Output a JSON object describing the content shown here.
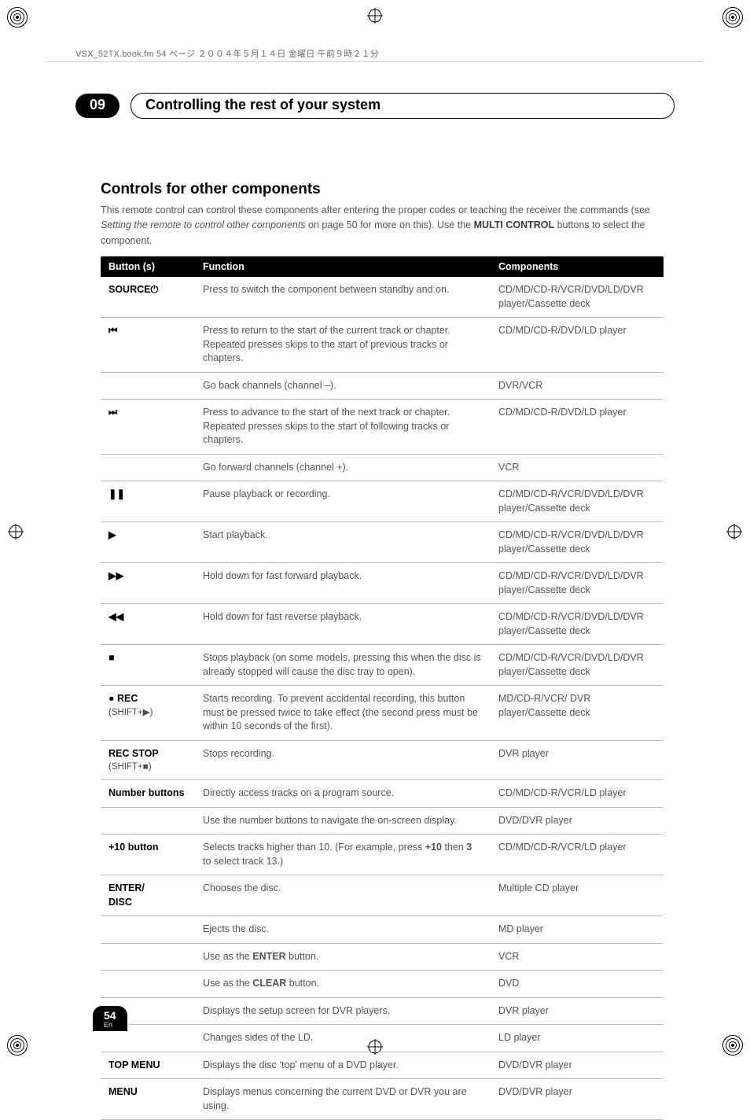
{
  "header": {
    "doc_line": "VSX_52TX.book.fm 54 ページ ２００４年５月１４日 金曜日 午前９時２１分"
  },
  "chapter": {
    "number": "09",
    "title": "Controlling the rest of your system"
  },
  "section": {
    "title": "Controls for other components",
    "intro_pre": "This remote control can control these components after entering the proper codes or teaching the receiver the commands (see ",
    "intro_em": "Setting the remote to control other components",
    "intro_mid": " on page 50 for more on this). Use the ",
    "intro_strong1": "MULTI CONTROL",
    "intro_post": " buttons to select the component."
  },
  "table": {
    "headers": {
      "c1": "Button (s)",
      "c2": "Function",
      "c3": "Components"
    },
    "rows": [
      {
        "btn": "SOURCE⏻",
        "fn": "Press to switch the component between standby and on.",
        "comp": "CD/MD/CD-R/VCR/DVD/LD/DVR player/Cassette deck"
      },
      {
        "btn": "⏮",
        "fn": "Press to return to the start of the current track or chapter.\nRepeated presses skips to the start of previous tracks or chapters.",
        "comp": "CD/MD/CD-R/DVD/LD player"
      },
      {
        "btn": "",
        "fn": "Go back channels (channel –).",
        "comp": "DVR/VCR"
      },
      {
        "btn": "⏭",
        "fn": "Press to advance to the start of the next track or chapter.\nRepeated presses skips to the start of following tracks or chapters.",
        "comp": "CD/MD/CD-R/DVD/LD player"
      },
      {
        "btn": "",
        "fn": "Go forward channels (channel +).",
        "comp": "VCR"
      },
      {
        "btn": "❚❚",
        "fn": "Pause playback or recording.",
        "comp": "CD/MD/CD-R/VCR/DVD/LD/DVR player/Cassette deck"
      },
      {
        "btn": "▶",
        "fn": "Start playback.",
        "comp": "CD/MD/CD-R/VCR/DVD/LD/DVR player/Cassette deck"
      },
      {
        "btn": "▶▶",
        "fn": "Hold down for fast forward playback.",
        "comp": "CD/MD/CD-R/VCR/DVD/LD/DVR player/Cassette deck"
      },
      {
        "btn": "◀◀",
        "fn": "Hold down for fast reverse playback.",
        "comp": "CD/MD/CD-R/VCR/DVD/LD/DVR player/Cassette deck"
      },
      {
        "btn": "■",
        "fn": "Stops playback (on some models, pressing this when the disc is already stopped will cause the disc tray to open).",
        "comp": "CD/MD/CD-R/VCR/DVD/LD/DVR player/Cassette deck"
      },
      {
        "btn": "● REC",
        "btn_sub": "(SHIFT+▶)",
        "fn": "Starts recording. To prevent accidental recording, this button must be pressed twice to take effect (the second press must be within 10 seconds of the first).",
        "comp": "MD/CD-R/VCR/ DVR player/Cassette deck"
      },
      {
        "btn": "REC STOP",
        "btn_sub": "(SHIFT+■)",
        "fn": "Stops recording.",
        "comp": "DVR player"
      },
      {
        "btn": "Number buttons",
        "fn": "Directly access tracks on a program source.",
        "comp": "CD/MD/CD-R/VCR/LD player"
      },
      {
        "btn": "",
        "fn": "Use the number buttons to navigate the on-screen display.",
        "comp": "DVD/DVR player"
      },
      {
        "btn_html": "<b>+10</b> button",
        "fn_html": "Selects tracks higher than 10. (For example, press <b>+10</b> then <b>3</b> to select track 13.)",
        "comp": "CD/MD/CD-R/VCR/LD player"
      },
      {
        "btn": "ENTER/\nDISC",
        "fn": "Chooses the disc.",
        "comp": "Multiple CD player"
      },
      {
        "btn": "",
        "fn": "Ejects the disc.",
        "comp": "MD player"
      },
      {
        "btn": "",
        "fn_html": "Use as the <b>ENTER</b> button.",
        "comp": "VCR"
      },
      {
        "btn": "",
        "fn_html": "Use as the <b>CLEAR</b> button.",
        "comp": "DVD"
      },
      {
        "btn": "",
        "fn": "Displays the setup screen for DVR players.",
        "comp": "DVR player"
      },
      {
        "btn": "",
        "fn": "Changes sides of the LD.",
        "comp": "LD player"
      },
      {
        "btn": "TOP MENU",
        "fn": "Displays the disc ‘top’ menu of a DVD player.",
        "comp": "DVD/DVR player"
      },
      {
        "btn": "MENU",
        "fn": "Displays menus concerning the current DVD or DVR you are using.",
        "comp": "DVD/DVR player"
      }
    ]
  },
  "footer": {
    "page": "54",
    "lang": "En"
  }
}
